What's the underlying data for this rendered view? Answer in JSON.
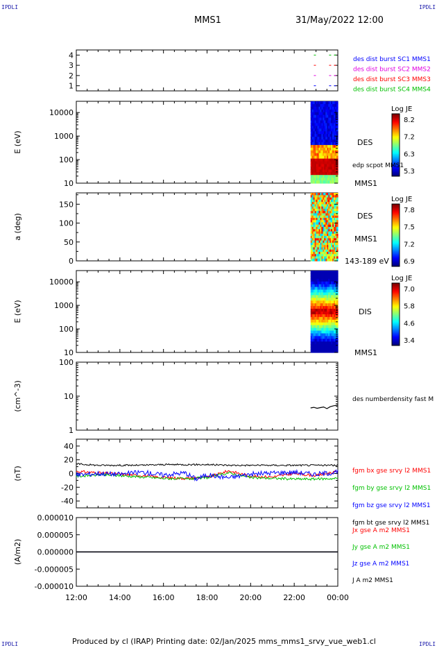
{
  "header": {
    "corner_label": "IPDLI",
    "spacecraft": "MMS1",
    "datetime": "31/May/2022 12:00"
  },
  "footer": {
    "text": "Produced by cl (IRAP)   Printing date: 02/Jan/2025   mms_mms1_srvy_vue_web1.cl"
  },
  "colors": {
    "legend_blue": "#0000ff",
    "legend_magenta": "#e000e0",
    "legend_red": "#ff0000",
    "legend_green": "#00c000"
  },
  "chart_data": [
    {
      "type": "line",
      "panel": "burst-availability",
      "ylim": [
        0.5,
        4.5
      ],
      "yticks": [
        "1",
        "2",
        "3",
        "4"
      ],
      "series": [
        {
          "name": "des dist burst SC1 MMS1",
          "color": "#0000ff",
          "y": 1
        },
        {
          "name": "des dist burst SC2 MMS2",
          "color": "#e000e0",
          "y": 2
        },
        {
          "name": "des dist burst SC3 MMS3",
          "color": "#ff0000",
          "y": 3
        },
        {
          "name": "des dist burst SC4 MMS4",
          "color": "#00c000",
          "y": 4
        }
      ],
      "segments_hours": [
        [
          22.9,
          23.1
        ],
        [
          23.6,
          24.0
        ]
      ]
    },
    {
      "type": "heatmap",
      "panel": "des-energy",
      "ylabel": "E (eV)",
      "ylim": [
        10,
        30000
      ],
      "yticks": [
        "10",
        "100",
        "1000",
        "10000"
      ],
      "x_range_hours": [
        22.75,
        24.0
      ],
      "label": "DES",
      "label2": "edp scpot MMS1",
      "label3": "MMS1",
      "colorbar": {
        "title": "Log JE",
        "ticks": [
          "8.2",
          "7.2",
          "6.3",
          "5.3"
        ]
      }
    },
    {
      "type": "heatmap",
      "panel": "des-pitch-angle",
      "ylabel": "a (deg)",
      "ylim": [
        0,
        180
      ],
      "yticks": [
        "0",
        "50",
        "100",
        "150"
      ],
      "x_range_hours": [
        22.75,
        24.0
      ],
      "label": "DES",
      "label2": "MMS1",
      "label3": "143-189 eV",
      "colorbar": {
        "title": "Log JE",
        "ticks": [
          "7.8",
          "7.5",
          "7.2",
          "6.9"
        ]
      }
    },
    {
      "type": "heatmap",
      "panel": "dis-energy",
      "ylabel": "E (eV)",
      "ylim": [
        10,
        30000
      ],
      "yticks": [
        "10",
        "100",
        "1000",
        "10000"
      ],
      "x_range_hours": [
        22.75,
        24.0
      ],
      "label": "DIS",
      "label2": "MMS1",
      "colorbar": {
        "title": "Log JE",
        "ticks": [
          "7.0",
          "5.8",
          "4.6",
          "3.4"
        ]
      }
    },
    {
      "type": "line",
      "panel": "density",
      "ylabel": "(cm^-3)",
      "ylim": [
        1,
        100
      ],
      "yticks": [
        "1",
        "10",
        "100"
      ],
      "series": [
        {
          "name": "des numberdensity fast M",
          "color": "#000000",
          "x": [
            22.75,
            22.9,
            23.05,
            23.2,
            23.35,
            23.5,
            23.65,
            23.8,
            23.95,
            24.0
          ],
          "y": [
            4.5,
            4.7,
            4.4,
            4.6,
            4.8,
            4.3,
            4.9,
            5.2,
            5.4,
            5.5
          ]
        }
      ]
    },
    {
      "type": "line",
      "panel": "magnetic-field",
      "ylabel": "(nT)",
      "ylim": [
        -50,
        50
      ],
      "yticks": [
        "-40",
        "-20",
        "0",
        "20",
        "40"
      ],
      "series": [
        {
          "name": "fgm bx gse srvy l2 MMS1",
          "color": "#ff0000",
          "x": [
            12.0,
            13.0,
            14.0,
            15.0,
            16.0,
            17.0,
            17.5,
            18.0,
            19.0,
            20.0,
            21.0,
            22.0,
            23.0,
            24.0
          ],
          "y": [
            3,
            1,
            -1,
            -3,
            -6,
            -7,
            -6,
            -6,
            4,
            -4,
            -5,
            0,
            -3,
            3
          ]
        },
        {
          "name": "fgm by gse srvy l2 MMS1",
          "color": "#00c000",
          "x": [
            12.0,
            13.0,
            14.0,
            15.0,
            16.0,
            17.0,
            17.5,
            18.0,
            19.0,
            20.0,
            21.0,
            22.0,
            23.0,
            24.0
          ],
          "y": [
            -4,
            -2,
            -3,
            -5,
            -7,
            -8,
            -7,
            -6,
            1,
            -6,
            -7,
            -8,
            -8,
            -7
          ]
        },
        {
          "name": "fgm bz gse srvy l2 MMS1",
          "color": "#0000ff",
          "x": [
            12.0,
            13.0,
            14.0,
            15.0,
            16.0,
            17.0,
            17.5,
            18.0,
            19.0,
            20.0,
            21.0,
            22.0,
            23.0,
            24.0
          ],
          "y": [
            -2,
            0,
            -1,
            2,
            -2,
            1,
            -8,
            -2,
            -6,
            -1,
            1,
            2,
            -1,
            2
          ]
        },
        {
          "name": "fgm bt gse srvy l2 MMS1",
          "color": "#000000",
          "x": [
            12.0,
            13.0,
            14.0,
            15.0,
            16.0,
            17.0,
            17.5,
            18.0,
            19.0,
            20.0,
            21.0,
            22.0,
            23.0,
            24.0
          ],
          "y": [
            14,
            12,
            12,
            12,
            13,
            13,
            13,
            13,
            12,
            12,
            12,
            12,
            12,
            12
          ]
        }
      ]
    },
    {
      "type": "line",
      "panel": "current-density",
      "ylabel": "(A/m2)",
      "ylim": [
        -1e-05,
        1e-05
      ],
      "yticks": [
        "-0.000010",
        "-0.000005",
        "0.000000",
        "0.000005",
        "0.000010"
      ],
      "series": [
        {
          "name": "Jx gse A m2 MMS1",
          "color": "#ff0000",
          "x": [
            12,
            24
          ],
          "y": [
            0,
            0
          ]
        },
        {
          "name": "Jy gse A m2 MMS1",
          "color": "#00c000",
          "x": [
            12,
            24
          ],
          "y": [
            0,
            0
          ]
        },
        {
          "name": "Jz gse A m2 MMS1",
          "color": "#0000ff",
          "x": [
            12,
            24
          ],
          "y": [
            0,
            0
          ]
        },
        {
          "name": "J A m2 MMS1",
          "color": "#000000",
          "x": [
            12,
            24
          ],
          "y": [
            0,
            0
          ]
        }
      ]
    }
  ],
  "x_axis": {
    "range_hours": [
      12,
      24
    ],
    "tick_labels": [
      "12:00",
      "14:00",
      "16:00",
      "18:00",
      "20:00",
      "22:00",
      "00:00"
    ]
  }
}
